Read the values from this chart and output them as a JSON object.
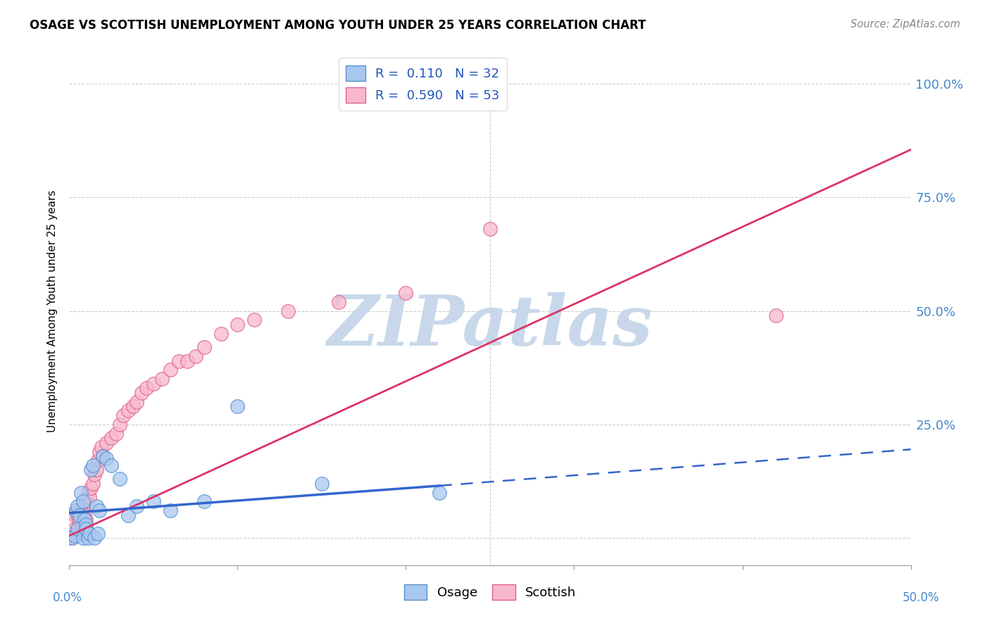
{
  "title": "OSAGE VS SCOTTISH UNEMPLOYMENT AMONG YOUTH UNDER 25 YEARS CORRELATION CHART",
  "source": "Source: ZipAtlas.com",
  "ylabel": "Unemployment Among Youth under 25 years",
  "ytick_vals": [
    0.0,
    0.25,
    0.5,
    0.75,
    1.0
  ],
  "ytick_labels": [
    "",
    "25.0%",
    "50.0%",
    "75.0%",
    "100.0%"
  ],
  "xlim": [
    0.0,
    0.5
  ],
  "ylim": [
    -0.06,
    1.06
  ],
  "osage_R": 0.11,
  "osage_N": 32,
  "scottish_R": 0.59,
  "scottish_N": 53,
  "osage_color": "#A8C8F0",
  "osage_edge_color": "#5590D0",
  "scottish_color": "#F8B8CC",
  "scottish_edge_color": "#E06090",
  "trend_osage_solid_color": "#3366CC",
  "trend_osage_dash_color": "#3366CC",
  "trend_scottish_color": "#DD3366",
  "watermark_color": "#C8D8EA",
  "background_color": "#FFFFFF",
  "osage_x": [
    0.002,
    0.003,
    0.004,
    0.005,
    0.005,
    0.006,
    0.007,
    0.008,
    0.008,
    0.009,
    0.01,
    0.01,
    0.011,
    0.012,
    0.013,
    0.014,
    0.015,
    0.016,
    0.017,
    0.018,
    0.02,
    0.022,
    0.025,
    0.03,
    0.035,
    0.04,
    0.05,
    0.06,
    0.08,
    0.1,
    0.15,
    0.22
  ],
  "osage_y": [
    0.0,
    0.005,
    0.06,
    0.02,
    0.07,
    0.05,
    0.1,
    0.08,
    0.0,
    0.04,
    0.03,
    0.02,
    0.0,
    0.01,
    0.15,
    0.16,
    0.0,
    0.07,
    0.01,
    0.06,
    0.18,
    0.175,
    0.16,
    0.13,
    0.05,
    0.07,
    0.08,
    0.06,
    0.08,
    0.29,
    0.12,
    0.1
  ],
  "scottish_x": [
    0.001,
    0.002,
    0.003,
    0.003,
    0.004,
    0.004,
    0.005,
    0.005,
    0.006,
    0.006,
    0.007,
    0.007,
    0.008,
    0.008,
    0.009,
    0.009,
    0.01,
    0.01,
    0.011,
    0.012,
    0.013,
    0.014,
    0.015,
    0.016,
    0.017,
    0.018,
    0.019,
    0.02,
    0.022,
    0.025,
    0.028,
    0.03,
    0.032,
    0.035,
    0.038,
    0.04,
    0.043,
    0.046,
    0.05,
    0.055,
    0.06,
    0.065,
    0.07,
    0.075,
    0.08,
    0.09,
    0.1,
    0.11,
    0.13,
    0.16,
    0.2,
    0.25,
    0.42
  ],
  "scottish_y": [
    0.0,
    0.01,
    0.02,
    0.05,
    0.01,
    0.06,
    0.02,
    0.05,
    0.01,
    0.04,
    0.02,
    0.06,
    0.03,
    0.07,
    0.01,
    0.05,
    0.04,
    0.08,
    0.1,
    0.09,
    0.11,
    0.12,
    0.14,
    0.15,
    0.17,
    0.19,
    0.2,
    0.18,
    0.21,
    0.22,
    0.23,
    0.25,
    0.27,
    0.28,
    0.29,
    0.3,
    0.32,
    0.33,
    0.34,
    0.35,
    0.37,
    0.39,
    0.39,
    0.4,
    0.42,
    0.45,
    0.47,
    0.48,
    0.5,
    0.52,
    0.54,
    0.68,
    0.49
  ],
  "osage_trend_x0": 0.0,
  "osage_trend_x_solid_end": 0.22,
  "osage_trend_x1": 0.5,
  "osage_trend_y0": 0.055,
  "osage_trend_y_solid_end": 0.115,
  "osage_trend_y1": 0.195,
  "scottish_trend_x0": 0.0,
  "scottish_trend_x1": 0.5,
  "scottish_trend_y0": 0.005,
  "scottish_trend_y1": 0.855
}
